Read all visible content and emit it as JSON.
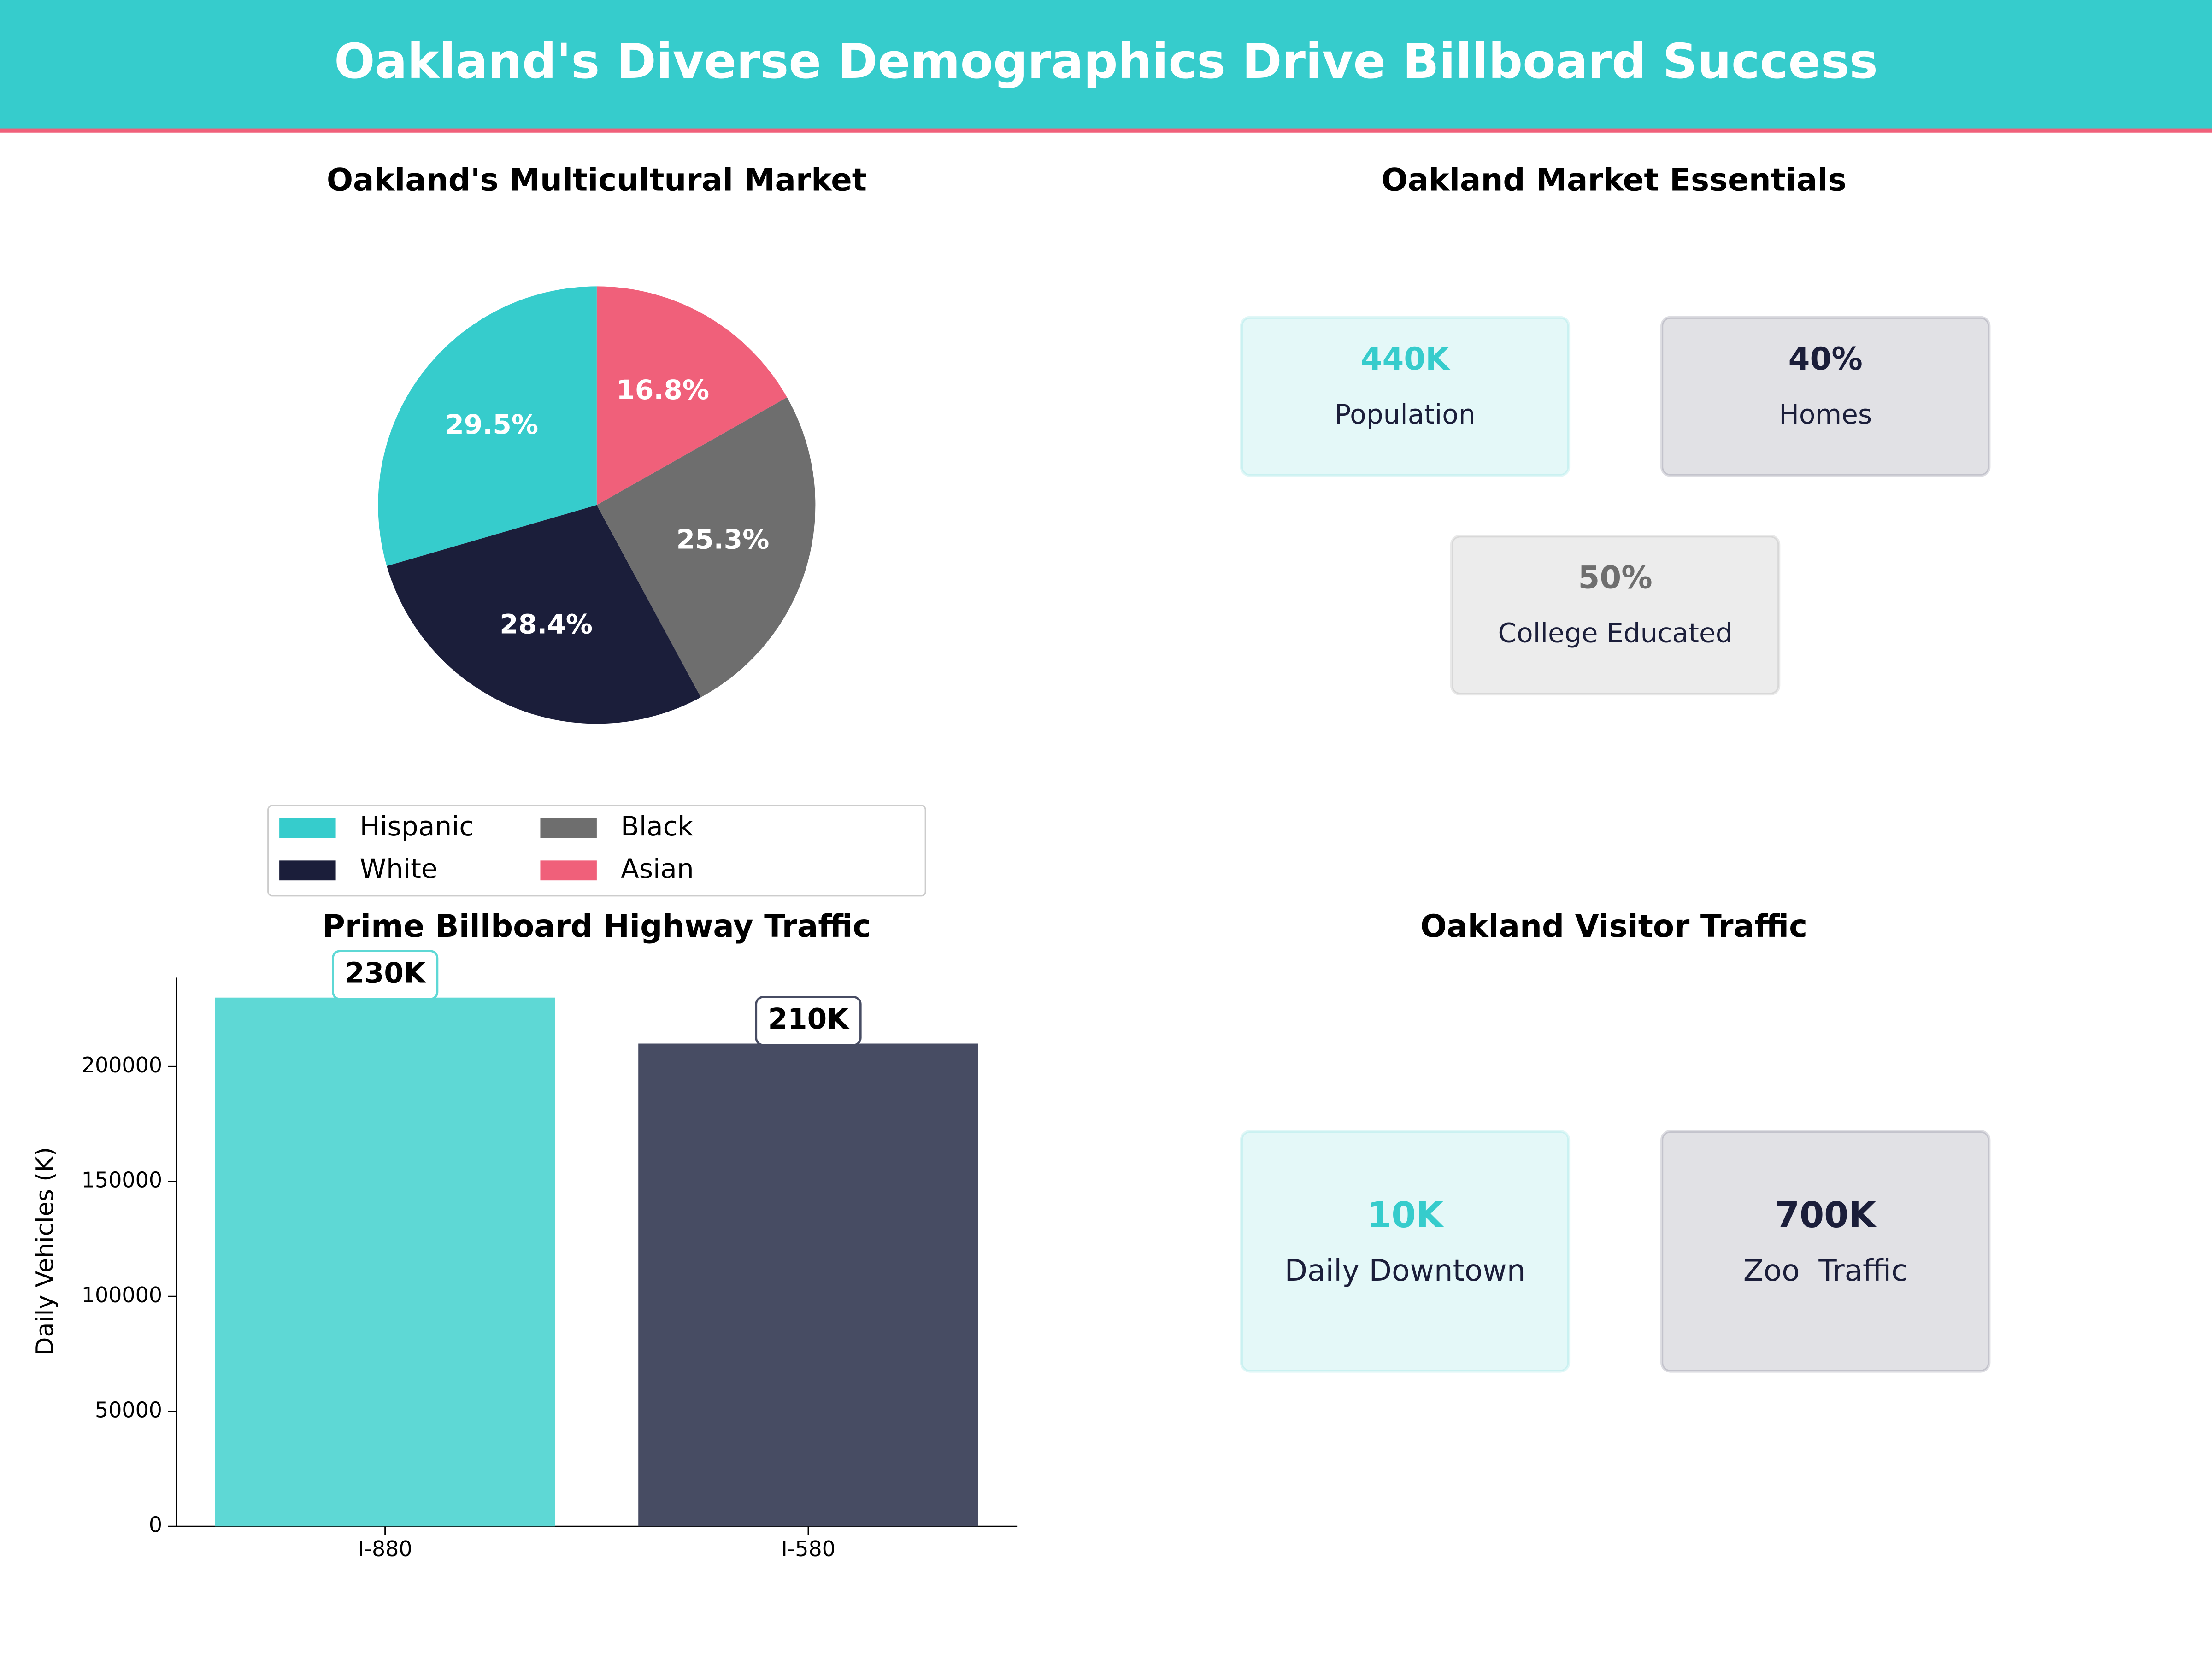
{
  "title": "Oakland's Diverse Demographics Drive Billboard Success",
  "chart_data": [
    {
      "type": "pie",
      "title": "Oakland's Multicultural Market",
      "categories": [
        "Hispanic",
        "White",
        "Black",
        "Asian"
      ],
      "values": [
        29.5,
        28.4,
        25.3,
        16.8
      ],
      "value_labels": [
        "29.5%",
        "28.4%",
        "25.3%",
        "16.8%"
      ],
      "colors": [
        "#36cccc",
        "#1b1e3a",
        "#6e6e6e",
        "#f0607a"
      ]
    },
    {
      "type": "bar",
      "title": "Prime Billboard Highway Traffic",
      "ylabel": "Daily Vehicles (K)",
      "categories": [
        "I-880",
        "I-580"
      ],
      "values": [
        230000,
        210000
      ],
      "value_labels": [
        "230K",
        "210K"
      ],
      "colors": [
        "#5ed8d5",
        "#474c63"
      ],
      "ylim": [
        0,
        241500
      ],
      "yticks": [
        0,
        50000,
        100000,
        150000,
        200000
      ]
    }
  ],
  "panels": [
    {
      "title": "Oakland Market Essentials",
      "cards": [
        {
          "value": "440K",
          "label": "Population",
          "color": "#36cccc"
        },
        {
          "value": "40%",
          "label": "Homes",
          "color": "#1b1e3a"
        },
        {
          "value": "50%",
          "label": "College Educated",
          "color": "#6e6e6e"
        }
      ]
    },
    {
      "title": "Oakland Visitor Traffic",
      "cards": [
        {
          "value": "10K",
          "label": "Daily Downtown",
          "color": "#36cccc"
        },
        {
          "value": "700K",
          "label": "Zoo  Traffic",
          "color": "#1b1e3a"
        }
      ]
    }
  ]
}
